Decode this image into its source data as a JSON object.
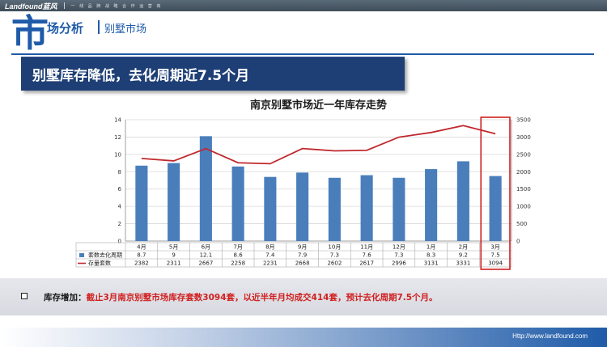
{
  "header": {
    "brand": "Landfound蓝风",
    "tagline": "一 线 品 牌 战 略 合 作 运 营 商"
  },
  "section": {
    "big_char": "市",
    "title": "场分析",
    "subtitle": "别墅市场"
  },
  "banner": {
    "text": "别墅库存降低，去化周期近7.5个月"
  },
  "chart_data": {
    "type": "bar",
    "title": "南京别墅市场近一年库存走势",
    "categories": [
      "4月",
      "5月",
      "6月",
      "7月",
      "8月",
      "9月",
      "10月",
      "11月",
      "12月",
      "1月",
      "2月",
      "3月"
    ],
    "series": [
      {
        "name": "套数去化周期",
        "type": "bar",
        "axis": "left",
        "color": "#4a7ebb",
        "values": [
          8.7,
          9,
          12.1,
          8.6,
          7.4,
          7.9,
          7.3,
          7.6,
          7.3,
          8.3,
          9.2,
          7.5
        ]
      },
      {
        "name": "存量套数",
        "type": "line",
        "axis": "right",
        "color": "#c0282d",
        "values": [
          2382,
          2311,
          2667,
          2258,
          2231,
          2668,
          2602,
          2617,
          2996,
          3131,
          3331,
          3094
        ]
      }
    ],
    "y_left": {
      "ylim": [
        0,
        14
      ],
      "ticks": [
        0,
        2,
        4,
        6,
        8,
        10,
        12,
        14
      ]
    },
    "y_right": {
      "ylim": [
        0,
        3500
      ],
      "ticks": [
        0,
        500,
        1000,
        1500,
        2000,
        2500,
        3000,
        3500
      ]
    },
    "grid": true,
    "legend": "data-table-below",
    "highlight_category": "3月",
    "highlight_color": "#d0201f"
  },
  "summary": {
    "label": "库存增加：",
    "body": "截止3月南京别墅市场库存套数3094套，以近半年月均成交414套，预计去化周期7.5个月。"
  },
  "footer": {
    "url": "Http://www.landfound.com"
  }
}
